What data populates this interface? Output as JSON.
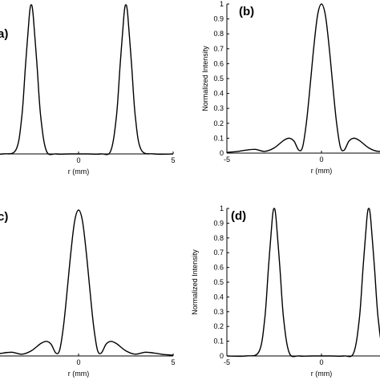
{
  "chart_data": [
    {
      "panel_label": "a)",
      "type": "line",
      "xlabel": "r (mm)",
      "ylabel": "",
      "xlim": [
        -5,
        5
      ],
      "ylim": [
        0,
        1
      ],
      "x_ticks": [
        "0",
        "5"
      ],
      "y_ticks": [],
      "series": [
        {
          "x": [
            -5,
            -4,
            -3.3,
            -3,
            -2.8,
            -2.6,
            -2.5,
            -2.4,
            -2.2,
            -2,
            -1.7,
            -1.2,
            -0.5,
            0,
            0.5,
            1.2,
            1.7,
            2,
            2.2,
            2.4,
            2.5,
            2.6,
            2.8,
            3,
            3.3,
            4,
            5
          ],
          "y": [
            0,
            0,
            0.03,
            0.25,
            0.6,
            0.93,
            1,
            0.93,
            0.6,
            0.25,
            0.02,
            0,
            0,
            0,
            0,
            0,
            0.02,
            0.25,
            0.6,
            0.93,
            1,
            0.93,
            0.6,
            0.25,
            0.03,
            0,
            0
          ]
        }
      ]
    },
    {
      "panel_label": "(b)",
      "type": "line",
      "xlabel": "r (mm)",
      "ylabel": "Normalized Intensity",
      "xlim": [
        -5,
        5
      ],
      "ylim": [
        0,
        1
      ],
      "x_ticks": [
        "-5",
        "0"
      ],
      "y_ticks": [
        "0",
        "0.1",
        "0.2",
        "0.3",
        "0.4",
        "0.5",
        "0.6",
        "0.7",
        "0.8",
        "0.9",
        "1"
      ],
      "series": [
        {
          "x": [
            -5,
            -4.5,
            -4,
            -3.5,
            -3,
            -2.5,
            -2,
            -1.7,
            -1.45,
            -1.2,
            -1,
            -0.8,
            -0.6,
            -0.4,
            -0.2,
            0,
            0.2,
            0.4,
            0.6,
            0.8,
            1,
            1.2,
            1.45,
            1.7,
            2,
            2.5,
            3,
            3.5,
            4,
            4.5,
            5
          ],
          "y": [
            0.005,
            0.01,
            0.02,
            0.025,
            0.012,
            0.035,
            0.085,
            0.1,
            0.08,
            0.02,
            0.04,
            0.2,
            0.45,
            0.72,
            0.93,
            1,
            0.93,
            0.72,
            0.45,
            0.2,
            0.04,
            0.02,
            0.08,
            0.1,
            0.085,
            0.035,
            0.012,
            0.025,
            0.02,
            0.01,
            0.005
          ]
        }
      ]
    },
    {
      "panel_label": "c)",
      "type": "line",
      "xlabel": "r (mm)",
      "ylabel": "",
      "xlim": [
        -5,
        5
      ],
      "ylim": [
        0,
        1
      ],
      "x_ticks": [
        "0",
        "5"
      ],
      "y_ticks": [],
      "series": [
        {
          "x": [
            -5,
            -4.5,
            -4,
            -3.5,
            -3,
            -2.5,
            -2,
            -1.7,
            -1.45,
            -1.2,
            -1,
            -0.8,
            -0.6,
            -0.4,
            -0.2,
            0,
            0.2,
            0.4,
            0.6,
            0.8,
            1,
            1.2,
            1.45,
            1.7,
            2,
            2.5,
            3,
            3.5,
            4,
            4.5,
            5
          ],
          "y": [
            0.005,
            0.01,
            0.02,
            0.025,
            0.012,
            0.035,
            0.085,
            0.1,
            0.08,
            0.02,
            0.04,
            0.2,
            0.45,
            0.72,
            0.93,
            1,
            0.93,
            0.72,
            0.45,
            0.2,
            0.04,
            0.02,
            0.08,
            0.1,
            0.085,
            0.035,
            0.012,
            0.025,
            0.02,
            0.01,
            0.005
          ]
        }
      ]
    },
    {
      "panel_label": "(d)",
      "type": "line",
      "xlabel": "r (mm)",
      "ylabel": "Normalized Intensity",
      "xlim": [
        -5,
        5
      ],
      "ylim": [
        0,
        1
      ],
      "x_ticks": [
        "-5",
        "0"
      ],
      "y_ticks": [
        "0",
        "0.1",
        "0.2",
        "0.3",
        "0.4",
        "0.5",
        "0.6",
        "0.7",
        "0.8",
        "0.9",
        "1"
      ],
      "series": [
        {
          "x": [
            -5,
            -4,
            -3.3,
            -3,
            -2.8,
            -2.6,
            -2.5,
            -2.4,
            -2.2,
            -2,
            -1.7,
            -1.2,
            -0.5,
            0,
            0.5,
            1.2,
            1.7,
            2,
            2.2,
            2.4,
            2.5,
            2.6,
            2.8,
            3,
            3.3,
            4,
            5
          ],
          "y": [
            0,
            0,
            0.03,
            0.25,
            0.6,
            0.93,
            1,
            0.93,
            0.6,
            0.25,
            0.02,
            0,
            0,
            0,
            0,
            0,
            0.02,
            0.25,
            0.6,
            0.93,
            1,
            0.93,
            0.6,
            0.25,
            0.03,
            0,
            0
          ]
        }
      ]
    }
  ]
}
